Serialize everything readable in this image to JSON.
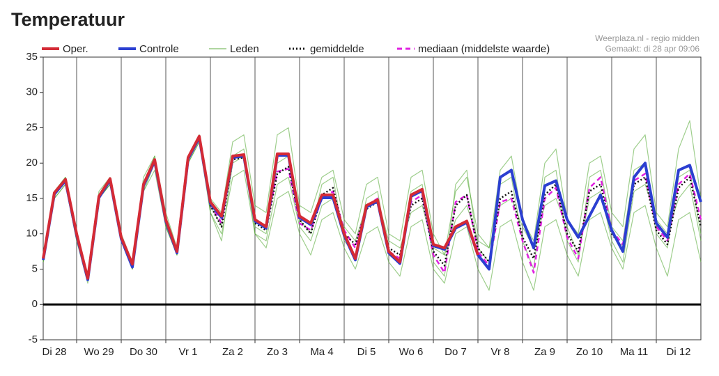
{
  "chart_data": {
    "type": "line",
    "title": "Temperatuur",
    "source": "Weerplaza.nl - regio midden",
    "created": "Gemaakt: di 28 apr 09:06",
    "categories": [
      null,
      "Di 28",
      null,
      null,
      null,
      "Wo 29",
      null,
      null,
      null,
      "Do 30",
      null,
      null,
      null,
      "Vr 1",
      null,
      null,
      null,
      "Za 2",
      null,
      null,
      null,
      "Zo 3",
      null,
      null,
      null,
      "Ma 4",
      null,
      null,
      null,
      "Di 5",
      null,
      null,
      null,
      "Wo 6",
      null,
      null,
      null,
      "Do 7",
      null,
      null,
      null,
      "Vr 8",
      null,
      null,
      null,
      "Za 9",
      null,
      null,
      null,
      "Zo 10",
      null,
      null,
      null,
      "Ma 11",
      null,
      null,
      null,
      "Di 12",
      null,
      null
    ],
    "ylim": [
      -5,
      35
    ],
    "yticks": [
      -5,
      0,
      5,
      10,
      15,
      20,
      25,
      30,
      35
    ],
    "zero_line": true,
    "series": [
      {
        "name": "Oper.",
        "color": "#d42a35",
        "width": 4,
        "linestyle": "solid",
        "values": [
          6.5,
          15.8,
          17.7,
          10,
          3.7,
          15.3,
          17.8,
          9.5,
          5.7,
          17,
          20.5,
          12,
          7.5,
          20.8,
          23.8,
          14.5,
          12.5,
          21,
          21.2,
          12,
          11,
          21.3,
          21.3,
          12.5,
          11.5,
          15.5,
          15.5,
          10,
          6.5,
          14,
          14.8,
          7.5,
          6,
          15.5,
          16.3,
          8.5,
          8,
          11,
          11.8,
          7,
          null,
          null,
          null,
          null,
          null,
          null,
          null,
          null,
          null,
          null,
          null,
          null,
          null,
          null,
          null,
          null,
          null,
          null,
          null,
          null
        ]
      },
      {
        "name": "Controle",
        "color": "#2b3fd1",
        "width": 4,
        "linestyle": "solid",
        "values": [
          6.3,
          15.6,
          17.5,
          9.8,
          3.5,
          15.1,
          17.6,
          9.3,
          5.3,
          16.8,
          20.3,
          11.8,
          7.3,
          20.6,
          23.6,
          14.3,
          12.3,
          20.8,
          21,
          11.8,
          10.8,
          21.1,
          21.1,
          12.3,
          11.3,
          15.1,
          15.1,
          9.8,
          6.3,
          13.8,
          14.6,
          7.3,
          5.8,
          15.3,
          16.1,
          8.3,
          7.8,
          10.8,
          11.6,
          7,
          5,
          18,
          19,
          12,
          8,
          16.8,
          17.5,
          12,
          9.5,
          12.5,
          15.5,
          10.5,
          7.5,
          18,
          20,
          11.5,
          9.5,
          19,
          19.7,
          14.5
        ]
      },
      {
        "name": "Leden",
        "color": "#4fa52d",
        "width": 1.2,
        "linestyle": "solid",
        "members": [
          [
            6,
            15,
            17,
            9,
            3,
            15,
            17,
            9,
            5,
            17,
            21,
            12,
            7,
            21,
            24,
            15,
            13,
            23,
            24,
            14,
            13,
            24,
            25,
            14,
            13,
            18,
            19,
            12,
            10,
            17,
            18,
            10,
            9,
            18,
            19,
            10,
            7,
            16,
            18,
            10,
            8,
            19,
            21,
            12,
            9,
            20,
            22,
            12,
            10,
            20,
            21,
            13,
            11,
            22,
            24,
            13,
            11,
            22,
            26,
            15
          ],
          [
            7,
            16,
            18,
            10,
            4,
            16,
            18,
            10,
            6,
            18,
            21,
            13,
            8,
            21,
            24,
            13,
            10,
            18,
            19,
            10,
            8,
            15,
            16,
            10,
            7,
            12,
            13,
            8,
            5,
            10,
            11,
            6,
            4,
            11,
            12,
            5,
            3,
            10,
            11,
            5,
            2,
            11,
            12,
            6,
            2,
            11,
            12,
            7,
            4,
            12,
            13,
            8,
            5,
            13,
            14,
            8,
            4,
            12,
            13,
            6
          ],
          [
            6,
            16,
            18,
            10,
            4,
            15,
            17,
            9,
            5,
            16,
            20,
            11,
            7,
            20,
            23,
            14,
            11,
            21,
            22,
            11,
            10,
            20,
            21,
            12,
            10,
            17,
            18,
            9,
            7,
            15,
            16,
            7,
            6,
            16,
            17,
            6,
            4,
            17,
            19,
            8,
            6,
            17,
            18,
            9,
            5,
            18,
            19,
            9,
            6,
            18,
            19,
            11,
            9,
            19,
            20,
            10,
            8,
            18,
            19,
            10
          ],
          [
            6,
            15,
            17,
            9,
            4,
            15,
            17,
            9,
            5,
            16,
            19,
            11,
            7,
            20,
            23,
            13,
            9,
            20,
            21,
            10,
            9,
            17,
            18,
            11,
            9,
            14,
            15,
            11,
            9,
            14,
            15,
            9,
            8,
            13,
            14,
            8,
            7,
            12,
            14,
            9,
            8,
            14,
            15,
            11,
            8,
            14,
            15,
            11,
            7,
            15,
            16,
            9,
            6,
            16,
            17,
            12,
            10,
            15,
            17,
            9
          ]
        ]
      },
      {
        "name": "gemiddelde",
        "color": "#111111",
        "width": 2.5,
        "linestyle": "dotted",
        "values": [
          6.4,
          15.7,
          17.6,
          9.9,
          3.6,
          15.2,
          17.7,
          9.4,
          5.5,
          16.9,
          20.4,
          11.9,
          7.4,
          20.7,
          23.7,
          14,
          11,
          20.5,
          20.8,
          11.5,
          10.5,
          18.5,
          19.5,
          12,
          10,
          15.5,
          16.5,
          10,
          8.5,
          13.5,
          14.5,
          8,
          7,
          14,
          15,
          7.5,
          5.5,
          14,
          15.5,
          8,
          6,
          15,
          16,
          9.5,
          6.5,
          15.5,
          17,
          10,
          7.5,
          16,
          17,
          10,
          8,
          17,
          18,
          10.5,
          8.5,
          16.5,
          18,
          11
        ]
      },
      {
        "name": "mediaan (middelste waarde)",
        "color": "#e020e0",
        "width": 2.5,
        "linestyle": "dashed",
        "values": [
          6.4,
          15.7,
          17.6,
          9.9,
          3.6,
          15.2,
          17.7,
          9.4,
          5.5,
          16.9,
          20.4,
          11.9,
          7.4,
          20.7,
          23.7,
          14.2,
          11.5,
          20.8,
          21,
          11.8,
          11,
          18.8,
          19.2,
          11.5,
          10.5,
          15,
          16,
          10.5,
          8,
          14,
          15,
          7.5,
          6.5,
          14.5,
          15.5,
          7,
          4.5,
          14.5,
          15.5,
          7.5,
          5.5,
          14.5,
          15,
          9,
          4.5,
          15,
          16.5,
          9.5,
          6.5,
          16.5,
          18,
          10.5,
          8.5,
          17.5,
          18.5,
          11,
          9,
          17,
          18.5,
          12
        ]
      }
    ]
  }
}
